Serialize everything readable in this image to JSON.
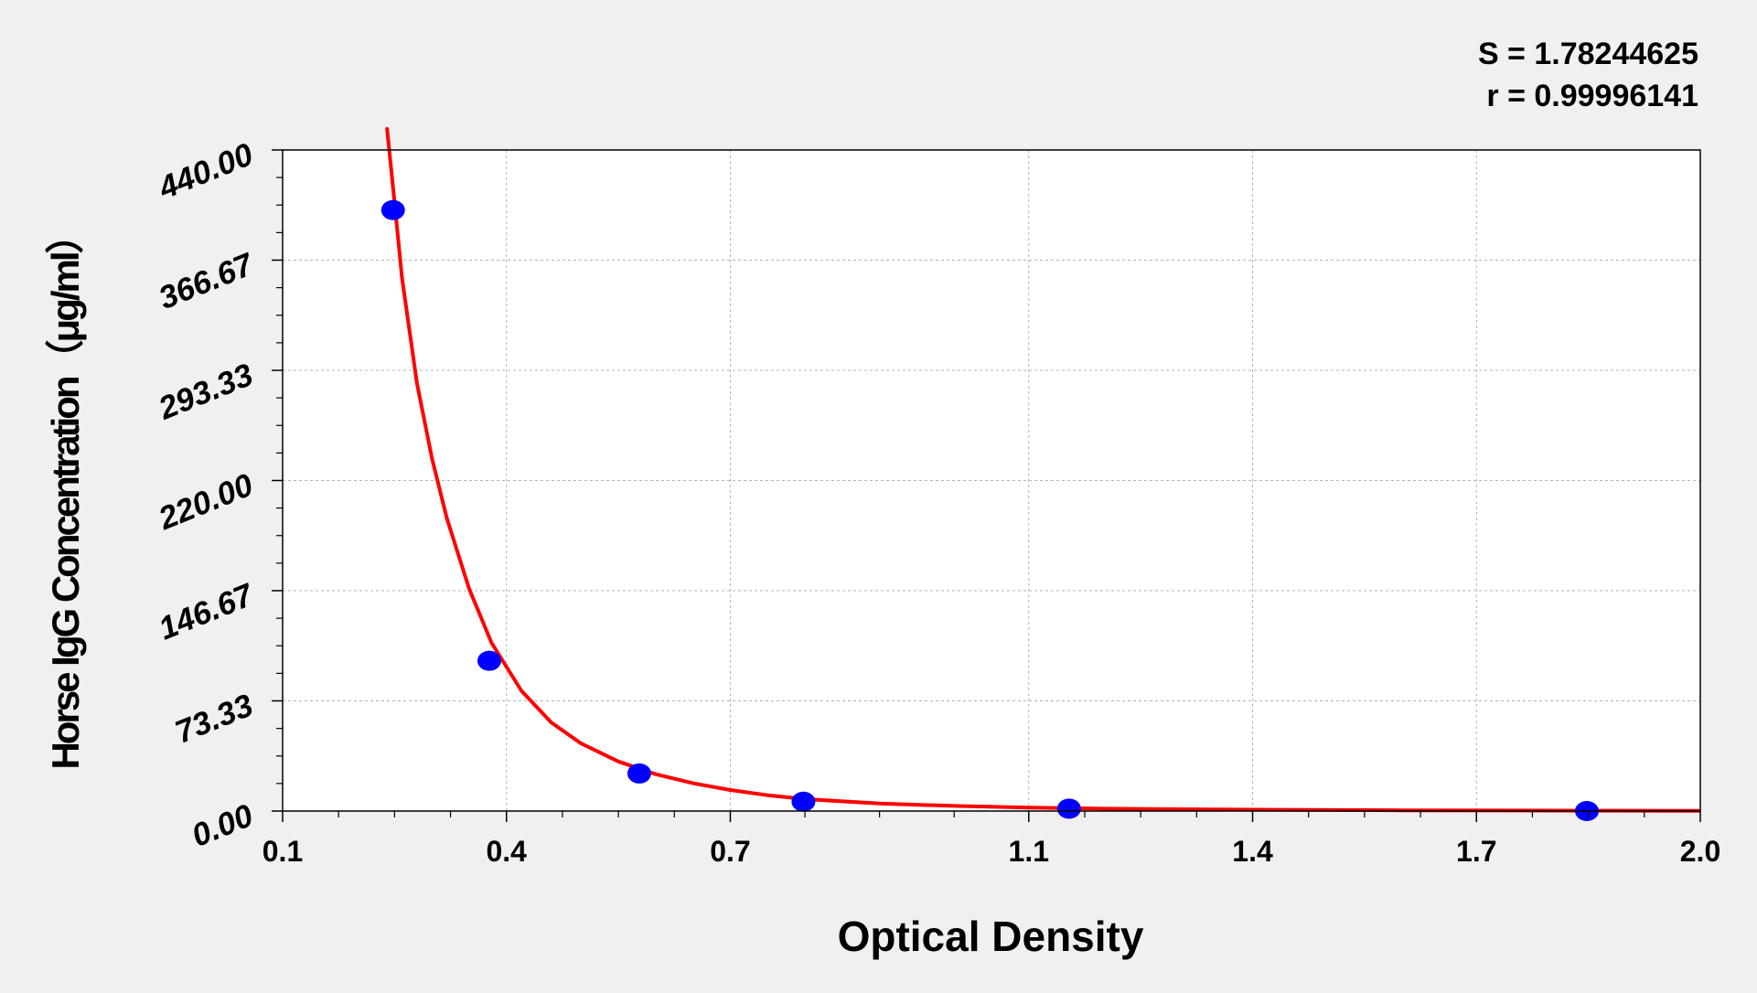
{
  "chart_data": {
    "type": "scatter",
    "xlabel": "Optical Density",
    "ylabel": "Horse IgG Concentration（μg/ml）",
    "xlim": [
      0.1,
      2.0
    ],
    "ylim": [
      0,
      440
    ],
    "x_ticks": [
      "0.1",
      "0.4",
      "0.7",
      "1.1",
      "1.4",
      "1.7",
      "2.0"
    ],
    "x_tick_values": [
      0.1,
      0.4,
      0.7,
      1.1,
      1.4,
      1.7,
      2.0
    ],
    "y_ticks": [
      "0.00",
      "73.33",
      "146.67",
      "220.00",
      "293.33",
      "366.67",
      "440.00"
    ],
    "y_tick_values": [
      0,
      73.33,
      146.67,
      220,
      293.33,
      366.67,
      440
    ],
    "grid": true,
    "annotations": {
      "s_value": "S = 1.78244625",
      "r_value": "r = 0.99996141"
    },
    "series": [
      {
        "kind": "points",
        "color": "#0000ff",
        "x": [
          0.248,
          0.377,
          0.578,
          0.798,
          1.154,
          1.848
        ],
        "y": [
          400,
          100,
          25,
          6.25,
          1.56,
          0
        ]
      },
      {
        "kind": "fit-curve",
        "color": "#ff0000",
        "x": [
          0.24,
          0.25,
          0.26,
          0.28,
          0.3,
          0.32,
          0.35,
          0.38,
          0.42,
          0.46,
          0.5,
          0.55,
          0.6,
          0.65,
          0.7,
          0.75,
          0.8,
          0.9,
          1.0,
          1.1,
          1.2,
          1.3,
          1.4,
          1.6,
          1.8,
          2.0
        ],
        "y": [
          454,
          405,
          355,
          285,
          235,
          195,
          148,
          112,
          80,
          59,
          45,
          33,
          24.5,
          18.5,
          14,
          10.5,
          8.0,
          5.0,
          3.4,
          2.3,
          1.6,
          1.2,
          0.9,
          0.5,
          0.3,
          0.2
        ]
      }
    ]
  }
}
